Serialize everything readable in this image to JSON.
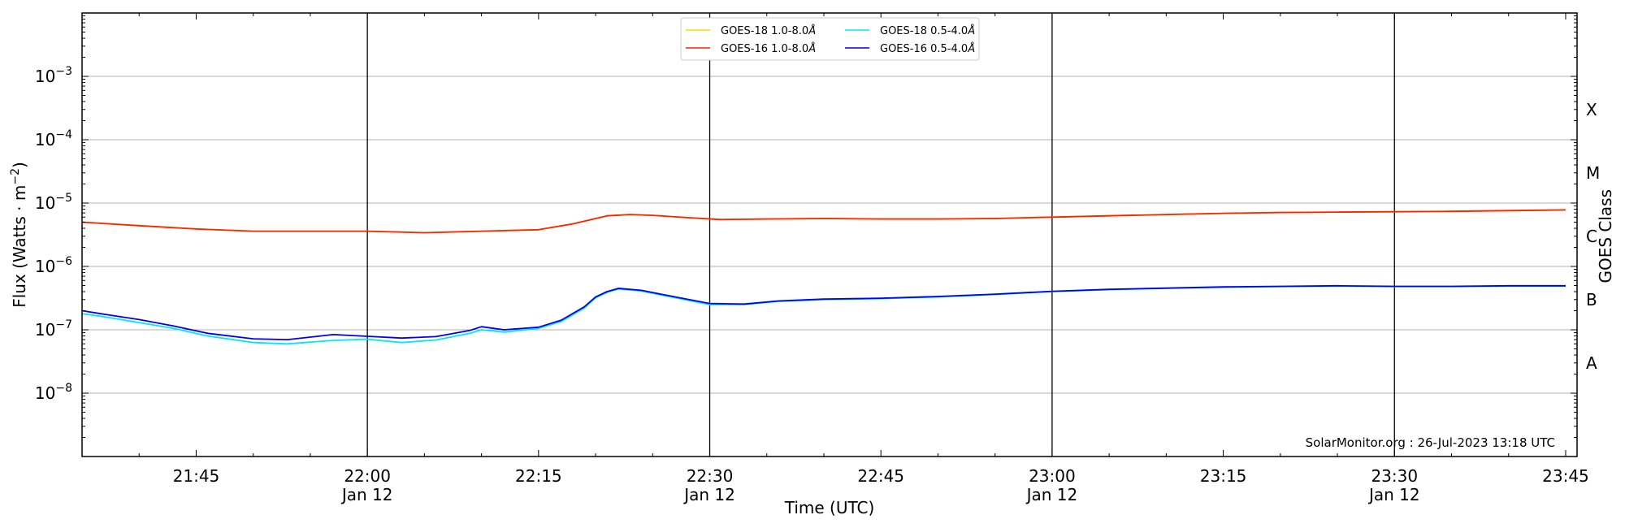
{
  "chart_data": {
    "type": "line",
    "xlabel": "Time (UTC)",
    "ylabel": "Flux (Watts · m",
    "ylabel_sup": "−2",
    "ylabel_close": ")",
    "right_label": "GOES Class",
    "y_scale": "log",
    "ylim": [
      1e-09,
      0.01
    ],
    "xlim": [
      "21:35",
      "23:46"
    ],
    "grid": "horizontal at decades; vertical lines at 22:00, 22:30, 23:00, 23:30",
    "legend_placement": "top-center",
    "x_ticks": [
      {
        "time": "21:45",
        "label": "21:45",
        "date": ""
      },
      {
        "time": "22:00",
        "label": "22:00",
        "date": "Jan 12"
      },
      {
        "time": "22:15",
        "label": "22:15",
        "date": ""
      },
      {
        "time": "22:30",
        "label": "22:30",
        "date": "Jan 12"
      },
      {
        "time": "22:45",
        "label": "22:45",
        "date": ""
      },
      {
        "time": "23:00",
        "label": "23:00",
        "date": "Jan 12"
      },
      {
        "time": "23:15",
        "label": "23:15",
        "date": ""
      },
      {
        "time": "23:30",
        "label": "23:30",
        "date": "Jan 12"
      },
      {
        "time": "23:45",
        "label": "23:45",
        "date": ""
      }
    ],
    "y_ticks": [
      {
        "value": 1e-08,
        "base": "10",
        "exp": "−8"
      },
      {
        "value": 1e-07,
        "base": "10",
        "exp": "−7"
      },
      {
        "value": 1e-06,
        "base": "10",
        "exp": "−6"
      },
      {
        "value": 1e-05,
        "base": "10",
        "exp": "−5"
      },
      {
        "value": 0.0001,
        "base": "10",
        "exp": "−4"
      },
      {
        "value": 0.001,
        "base": "10",
        "exp": "−3"
      }
    ],
    "goes_classes": [
      {
        "label": "A",
        "flux": 3e-08
      },
      {
        "label": "B",
        "flux": 3e-07
      },
      {
        "label": "C",
        "flux": 3e-06
      },
      {
        "label": "M",
        "flux": 3e-05
      },
      {
        "label": "X",
        "flux": 0.0003
      }
    ],
    "vlines": [
      "22:00",
      "22:30",
      "23:00",
      "23:30"
    ],
    "series": [
      {
        "name": "GOES-18 1.0-8.0",
        "color": "#ffd700",
        "x": [
          "21:35",
          "21:40",
          "21:45",
          "21:50",
          "21:55",
          "22:00",
          "22:05",
          "22:10",
          "22:15",
          "22:18",
          "22:21",
          "22:23",
          "22:25",
          "22:28",
          "22:31",
          "22:35",
          "22:40",
          "22:45",
          "22:50",
          "22:55",
          "23:00",
          "23:05",
          "23:10",
          "23:15",
          "23:20",
          "23:25",
          "23:30",
          "23:35",
          "23:40",
          "23:45"
        ],
        "values": [
          5e-06,
          4.4e-06,
          3.9e-06,
          3.6e-06,
          3.6e-06,
          3.6e-06,
          3.4e-06,
          3.6e-06,
          3.8e-06,
          4.7e-06,
          6.3e-06,
          6.6e-06,
          6.4e-06,
          5.9e-06,
          5.5e-06,
          5.6e-06,
          5.7e-06,
          5.6e-06,
          5.6e-06,
          5.7e-06,
          6e-06,
          6.3e-06,
          6.6e-06,
          6.9e-06,
          7.1e-06,
          7.2e-06,
          7.3e-06,
          7.4e-06,
          7.6e-06,
          7.8e-06
        ]
      },
      {
        "name": "GOES-16 1.0-8.0",
        "color": "#ff2200",
        "x": [
          "21:35",
          "21:40",
          "21:45",
          "21:50",
          "21:55",
          "22:00",
          "22:05",
          "22:10",
          "22:15",
          "22:18",
          "22:21",
          "22:23",
          "22:25",
          "22:28",
          "22:31",
          "22:35",
          "22:40",
          "22:45",
          "22:50",
          "22:55",
          "23:00",
          "23:05",
          "23:10",
          "23:15",
          "23:20",
          "23:25",
          "23:30",
          "23:35",
          "23:40",
          "23:45"
        ],
        "values": [
          5e-06,
          4.4e-06,
          3.9e-06,
          3.6e-06,
          3.6e-06,
          3.6e-06,
          3.4e-06,
          3.6e-06,
          3.8e-06,
          4.7e-06,
          6.3e-06,
          6.6e-06,
          6.4e-06,
          5.9e-06,
          5.5e-06,
          5.6e-06,
          5.7e-06,
          5.6e-06,
          5.6e-06,
          5.7e-06,
          6e-06,
          6.3e-06,
          6.6e-06,
          6.9e-06,
          7.1e-06,
          7.2e-06,
          7.3e-06,
          7.4e-06,
          7.6e-06,
          7.8e-06
        ]
      },
      {
        "name": "GOES-18 0.5-4.0",
        "color": "#00e5ff",
        "x": [
          "21:35",
          "21:37",
          "21:40",
          "21:43",
          "21:46",
          "21:50",
          "21:53",
          "21:57",
          "22:00",
          "22:03",
          "22:06",
          "22:09",
          "22:10",
          "22:12",
          "22:15",
          "22:17",
          "22:19",
          "22:20",
          "22:21",
          "22:22",
          "22:24",
          "22:27",
          "22:30",
          "22:33",
          "22:36",
          "22:40",
          "22:45",
          "22:50",
          "22:55",
          "23:00",
          "23:05",
          "23:10",
          "23:15",
          "23:20",
          "23:25",
          "23:30",
          "23:35",
          "23:40",
          "23:45"
        ],
        "values": [
          1.8e-07,
          1.6e-07,
          1.3e-07,
          1.05e-07,
          8e-08,
          6.3e-08,
          6e-08,
          6.8e-08,
          7.1e-08,
          6.3e-08,
          6.9e-08,
          8.8e-08,
          1e-07,
          9.2e-08,
          1.05e-07,
          1.35e-07,
          2.2e-07,
          3.2e-07,
          3.9e-07,
          4.4e-07,
          4.1e-07,
          3.2e-07,
          2.5e-07,
          2.5e-07,
          2.8e-07,
          3e-07,
          3.1e-07,
          3.3e-07,
          3.6e-07,
          4e-07,
          4.3e-07,
          4.5e-07,
          4.7e-07,
          4.8e-07,
          4.9e-07,
          4.8e-07,
          4.8e-07,
          4.9e-07,
          4.9e-07
        ]
      },
      {
        "name": "GOES-16 0.5-4.0",
        "color": "#0000ee",
        "x": [
          "21:35",
          "21:37",
          "21:40",
          "21:43",
          "21:46",
          "21:50",
          "21:53",
          "21:57",
          "22:00",
          "22:03",
          "22:06",
          "22:09",
          "22:10",
          "22:12",
          "22:15",
          "22:17",
          "22:19",
          "22:20",
          "22:21",
          "22:22",
          "22:24",
          "22:27",
          "22:30",
          "22:33",
          "22:36",
          "22:40",
          "22:45",
          "22:50",
          "22:55",
          "23:00",
          "23:05",
          "23:10",
          "23:15",
          "23:20",
          "23:25",
          "23:30",
          "23:35",
          "23:40",
          "23:45"
        ],
        "values": [
          2e-07,
          1.75e-07,
          1.45e-07,
          1.15e-07,
          8.8e-08,
          7.2e-08,
          7e-08,
          8.4e-08,
          7.9e-08,
          7.4e-08,
          7.8e-08,
          9.8e-08,
          1.12e-07,
          1e-07,
          1.1e-07,
          1.42e-07,
          2.3e-07,
          3.3e-07,
          4e-07,
          4.5e-07,
          4.2e-07,
          3.3e-07,
          2.6e-07,
          2.55e-07,
          2.85e-07,
          3.05e-07,
          3.15e-07,
          3.35e-07,
          3.65e-07,
          4.05e-07,
          4.35e-07,
          4.55e-07,
          4.75e-07,
          4.85e-07,
          4.95e-07,
          4.85e-07,
          4.85e-07,
          4.95e-07,
          4.95e-07
        ]
      }
    ],
    "angstrom_symbol": "Å",
    "credit": "SolarMonitor.org : 26-Jul-2023 13:18 UTC"
  }
}
